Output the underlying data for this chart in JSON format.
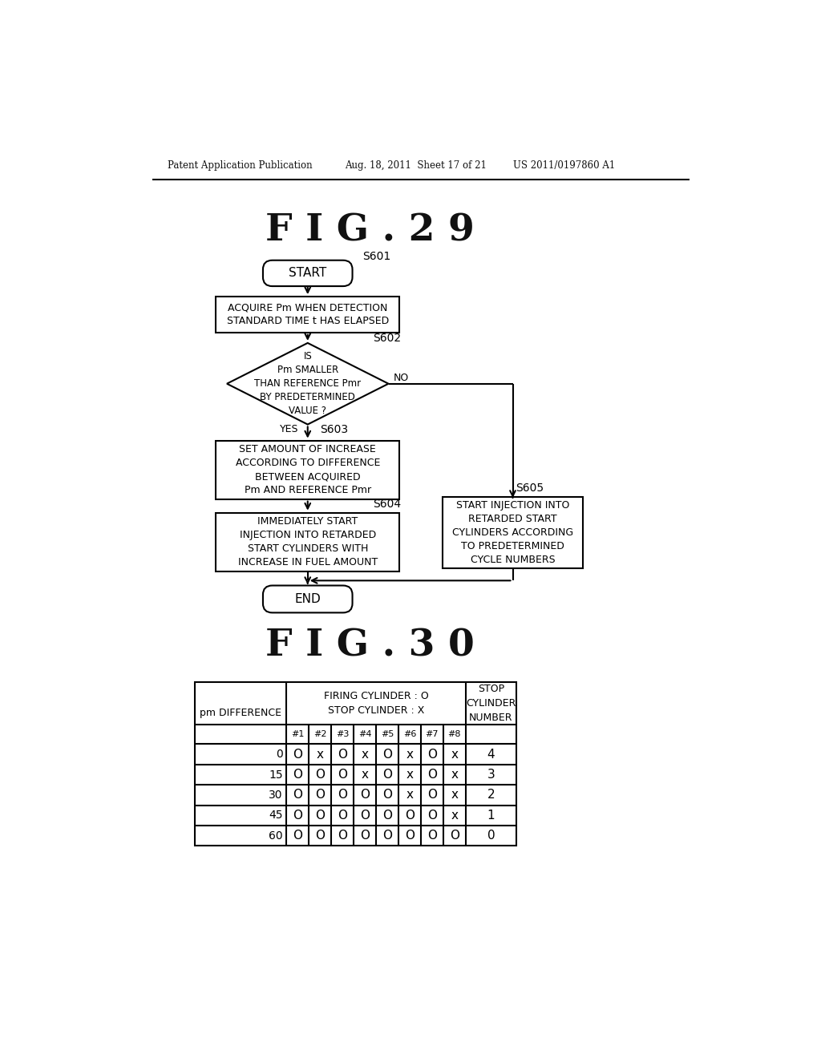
{
  "bg_color": "#ffffff",
  "header_left": "Patent Application Publication",
  "header_mid": "Aug. 18, 2011  Sheet 17 of 21",
  "header_right": "US 2011/0197860 A1",
  "fig29_title": "F I G . 2 9",
  "fig30_title": "F I G . 3 0",
  "start_label": "START",
  "end_label": "END",
  "s601_label": "S601",
  "s602_label": "S602",
  "s603_label": "S603",
  "s604_label": "S604",
  "s605_label": "S605",
  "box1_text": "ACQUIRE Pm WHEN DETECTION\nSTANDARD TIME t HAS ELAPSED",
  "diamond_text": "IS\nPm SMALLER\nTHAN REFERENCE Pmr\nBY PREDETERMINED\nVALUE ?",
  "diamond_yes": "YES",
  "diamond_no": "NO",
  "box3_text": "SET AMOUNT OF INCREASE\nACCORDING TO DIFFERENCE\nBETWEEN ACQUIRED\nPm AND REFERENCE Pmr",
  "box4_text": "IMMEDIATELY START\nINJECTION INTO RETARDED\nSTART CYLINDERS WITH\nINCREASE IN FUEL AMOUNT",
  "box5_text": "START INJECTION INTO\nRETARDED START\nCYLINDERS ACCORDING\nTO PREDETERMINED\nCYCLE NUMBERS",
  "table_col_header1": "FIRING CYLINDER : O\nSTOP CYLINDER : X",
  "table_col_header2": "STOP\nCYLINDER\nNUMBER",
  "table_row_header": "pm DIFFERENCE",
  "table_cylinders": [
    "#1",
    "#2",
    "#3",
    "#4",
    "#5",
    "#6",
    "#7",
    "#8"
  ],
  "table_data": [
    [
      0,
      "O",
      "x",
      "O",
      "x",
      "O",
      "x",
      "O",
      "x",
      4
    ],
    [
      15,
      "O",
      "O",
      "O",
      "x",
      "O",
      "x",
      "O",
      "x",
      3
    ],
    [
      30,
      "O",
      "O",
      "O",
      "O",
      "O",
      "x",
      "O",
      "x",
      2
    ],
    [
      45,
      "O",
      "O",
      "O",
      "O",
      "O",
      "O",
      "O",
      "x",
      1
    ],
    [
      60,
      "O",
      "O",
      "O",
      "O",
      "O",
      "O",
      "O",
      "O",
      0
    ]
  ]
}
